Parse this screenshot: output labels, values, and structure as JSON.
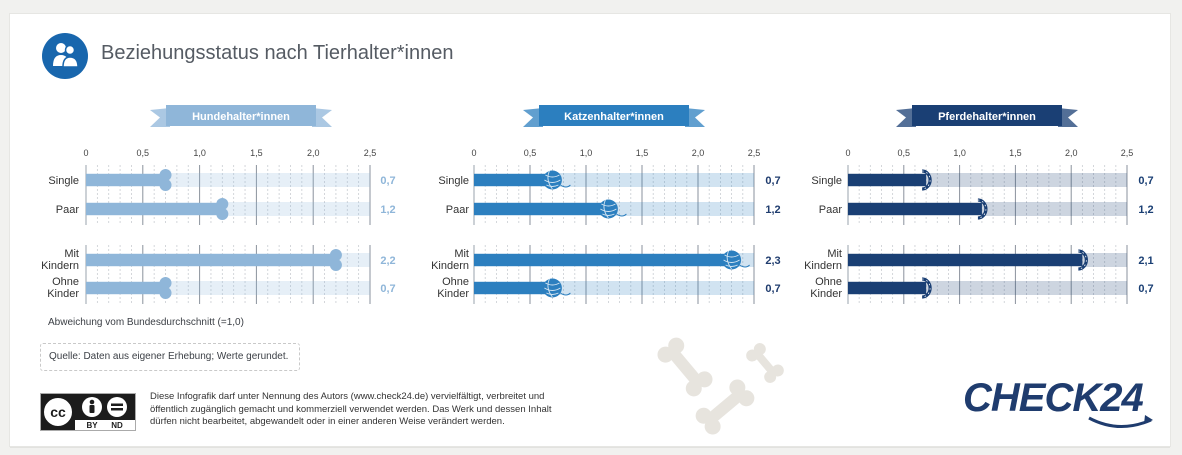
{
  "header": {
    "title": "Beziehungsstatus nach Tierhalter*innen",
    "icon": "people-icon",
    "icon_color": "#1866ad"
  },
  "chart_data": [
    {
      "type": "bar",
      "title": "Hundehalter*innen",
      "color": "#8fb6d9",
      "end_icon": "bone-icon",
      "categories": [
        "Single",
        "Paar",
        "Mit Kindern",
        "Ohne Kinder"
      ],
      "values": [
        0.7,
        1.2,
        2.2,
        0.7
      ],
      "value_labels": [
        "0,7",
        "1,2",
        "2,2",
        "0,7"
      ],
      "xlim": [
        0,
        2.5
      ],
      "ticks": [
        "0",
        "0,5",
        "1,0",
        "1,5",
        "2,0",
        "2,5"
      ]
    },
    {
      "type": "bar",
      "title": "Katzenhalter*innen",
      "color": "#2c7fbf",
      "end_icon": "yarn-ball-icon",
      "categories": [
        "Single",
        "Paar",
        "Mit Kindern",
        "Ohne Kinder"
      ],
      "values": [
        0.7,
        1.2,
        2.3,
        0.7
      ],
      "value_labels": [
        "0,7",
        "1,2",
        "2,3",
        "0,7"
      ],
      "xlim": [
        0,
        2.5
      ],
      "ticks": [
        "0",
        "0,5",
        "1,0",
        "1,5",
        "2,0",
        "2,5"
      ]
    },
    {
      "type": "bar",
      "title": "Pferdehalter*innen",
      "color": "#1a3f74",
      "end_icon": "horseshoe-icon",
      "categories": [
        "Single",
        "Paar",
        "Mit Kindern",
        "Ohne Kinder"
      ],
      "values": [
        0.7,
        1.2,
        2.1,
        0.7
      ],
      "value_labels": [
        "0,7",
        "1,2",
        "2,1",
        "0,7"
      ],
      "xlim": [
        0,
        2.5
      ],
      "ticks": [
        "0",
        "0,5",
        "1,0",
        "1,5",
        "2,0",
        "2,5"
      ]
    }
  ],
  "footnote": "Abweichung vom Bundesdurchschnitt (=1,0)",
  "source": "Quelle: Daten aus eigener Erhebung; Werte gerundet.",
  "license": {
    "badge_labels": [
      "cc",
      "BY",
      "ND"
    ],
    "text": "Diese Infografik darf unter Nennung des Autors (www.check24.de) vervielfältigt, verbreitet und öffentlich zugänglich gemacht und kommerziell verwendet werden. Das Werk und dessen Inhalt dürfen nicht bearbeitet, abgewandelt oder in einer anderen Weise verändert werden."
  },
  "brand": {
    "name": "CHECK24",
    "color": "#1f3c6e"
  }
}
